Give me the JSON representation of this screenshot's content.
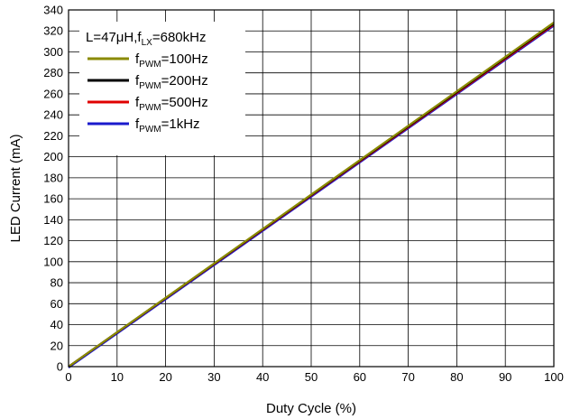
{
  "chart_data": {
    "type": "line",
    "title": "",
    "xlabel": "Duty Cycle (%)",
    "ylabel": "LED Current (mA)",
    "xlim": [
      0,
      100
    ],
    "ylim": [
      0,
      340
    ],
    "x_ticks": [
      0,
      10,
      20,
      30,
      40,
      50,
      60,
      70,
      80,
      90,
      100
    ],
    "y_ticks": [
      0,
      20,
      40,
      60,
      80,
      100,
      120,
      140,
      160,
      180,
      200,
      220,
      240,
      260,
      280,
      300,
      320,
      340
    ],
    "grid": true,
    "legend_placement": "top-left",
    "legend_header": {
      "prefix": "L=47",
      "mu": "μ",
      "mid": "H,f",
      "sub": "LX",
      "suffix": "=680kHz"
    },
    "series": [
      {
        "name_main": "f",
        "name_sub": "PWM",
        "name_value": "=100Hz",
        "color": "#8a8a00",
        "x": [
          0,
          100
        ],
        "y": [
          0,
          328
        ]
      },
      {
        "name_main": "f",
        "name_sub": "PWM",
        "name_value": "=200Hz",
        "color": "#000000",
        "x": [
          0,
          100
        ],
        "y": [
          0,
          327
        ]
      },
      {
        "name_main": "f",
        "name_sub": "PWM",
        "name_value": "=500Hz",
        "color": "#e00000",
        "x": [
          0,
          100
        ],
        "y": [
          0,
          326
        ]
      },
      {
        "name_main": "f",
        "name_sub": "PWM",
        "name_value": "=1kHz",
        "color": "#1a1acc",
        "x": [
          0,
          100
        ],
        "y": [
          -1,
          325
        ]
      }
    ]
  }
}
